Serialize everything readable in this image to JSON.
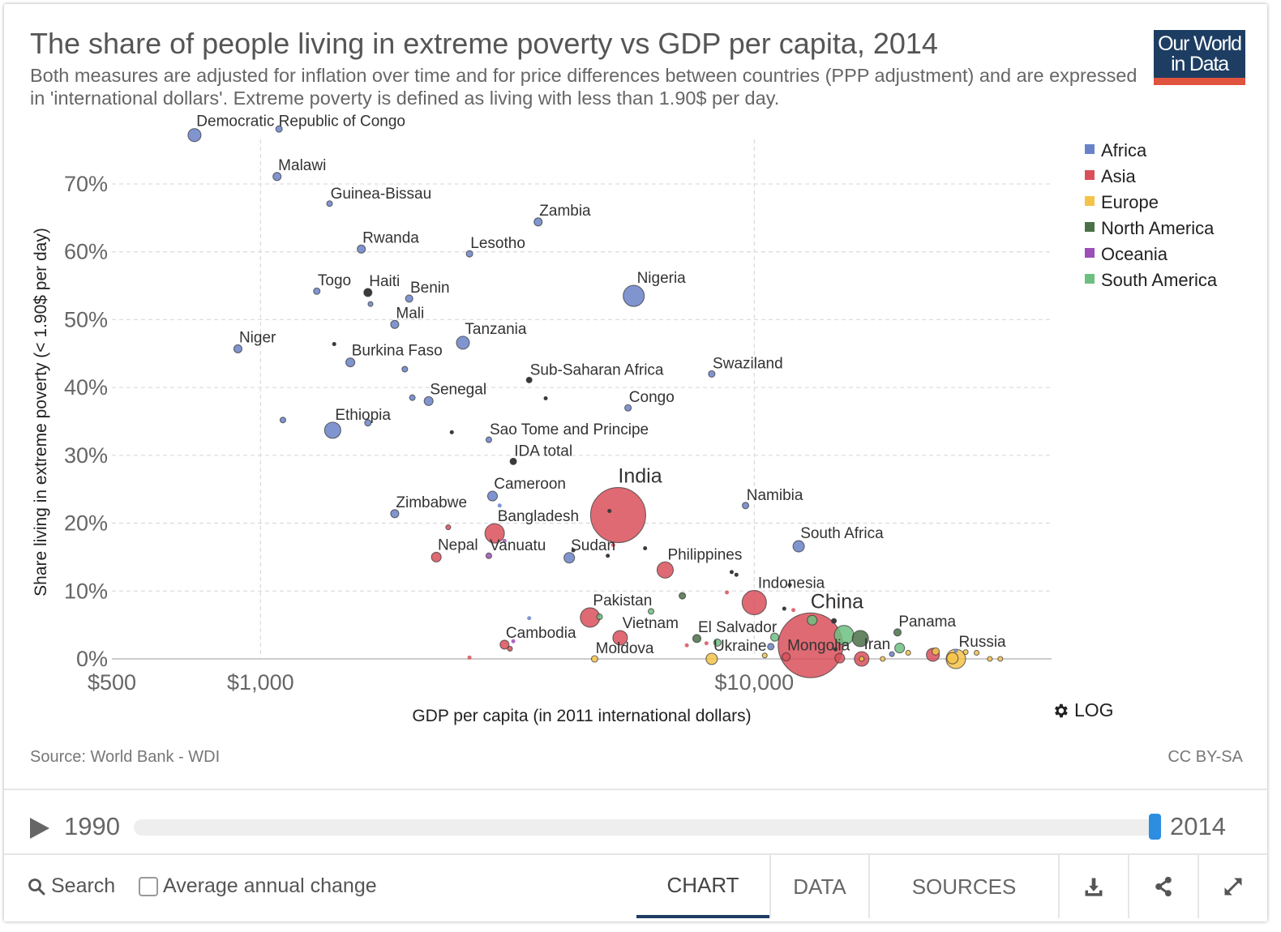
{
  "title": "The share of people living in extreme poverty vs GDP per capita, 2014",
  "subtitle": "Both measures are adjusted for inflation over time and for price differences between countries (PPP adjustment) and are expressed in 'international dollars'. Extreme poverty is defined as living with less than 1.90$ per day.",
  "logo": {
    "line1": "Our World",
    "line2": "in Data"
  },
  "colors": {
    "Africa": "#6a82c8",
    "Asia": "#d9505a",
    "Europe": "#f5c34a",
    "North America": "#4a7048",
    "Oceania": "#9b4fb8",
    "South America": "#6dbf80",
    "Other": "#3a3a3a"
  },
  "chart_data": {
    "type": "scatter",
    "xlabel": "GDP per capita (in 2011 international dollars)",
    "ylabel": "Share living in extreme poverty (< 1.90$ per day)",
    "xscale": "log",
    "xlim": [
      500,
      40000
    ],
    "ylim": [
      0,
      78
    ],
    "xticks": [
      {
        "value": 500,
        "label": "$500"
      },
      {
        "value": 1000,
        "label": "$1,000"
      },
      {
        "value": 10000,
        "label": "$10,000"
      }
    ],
    "yticks": [
      {
        "value": 0,
        "label": "0%"
      },
      {
        "value": 10,
        "label": "10%"
      },
      {
        "value": 20,
        "label": "20%"
      },
      {
        "value": 30,
        "label": "30%"
      },
      {
        "value": 40,
        "label": "40%"
      },
      {
        "value": 50,
        "label": "50%"
      },
      {
        "value": 60,
        "label": "60%"
      },
      {
        "value": 70,
        "label": "70%"
      }
    ],
    "legend": [
      "Africa",
      "Asia",
      "Europe",
      "North America",
      "Oceania",
      "South America"
    ],
    "legend_position": "right",
    "points": [
      {
        "name": "Democratic Republic of Congo",
        "label": "Democratic Republic of Congo",
        "region": "Africa",
        "gdp": 735,
        "pov": 77.2,
        "size": 8
      },
      {
        "name": "Unlabeled",
        "label": "",
        "region": "Africa",
        "gdp": 1090,
        "pov": 78.1,
        "size": 4
      },
      {
        "name": "Malawi",
        "label": "Malawi",
        "region": "Africa",
        "gdp": 1080,
        "pov": 71.1,
        "size": 5
      },
      {
        "name": "Guinea-Bissau",
        "label": "Guinea-Bissau",
        "region": "Africa",
        "gdp": 1380,
        "pov": 67.1,
        "size": 3.5
      },
      {
        "name": "Zambia",
        "label": "Zambia",
        "region": "Africa",
        "gdp": 3650,
        "pov": 64.4,
        "size": 5
      },
      {
        "name": "Rwanda",
        "label": "Rwanda",
        "region": "Africa",
        "gdp": 1600,
        "pov": 60.4,
        "size": 5
      },
      {
        "name": "Lesotho",
        "label": "Lesotho",
        "region": "Africa",
        "gdp": 2650,
        "pov": 59.7,
        "size": 4
      },
      {
        "name": "Togo",
        "label": "Togo",
        "region": "Africa",
        "gdp": 1300,
        "pov": 54.2,
        "size": 4
      },
      {
        "name": "Haiti",
        "label": "Haiti",
        "region": "Other",
        "gdp": 1650,
        "pov": 54.0,
        "size": 5
      },
      {
        "name": "Benin",
        "label": "Benin",
        "region": "Africa",
        "gdp": 2000,
        "pov": 53.1,
        "size": 4.5
      },
      {
        "name": "Unlabeled",
        "label": "",
        "region": "Africa",
        "gdp": 1670,
        "pov": 52.3,
        "size": 3
      },
      {
        "name": "Nigeria",
        "label": "Nigeria",
        "region": "Africa",
        "gdp": 5700,
        "pov": 53.5,
        "size": 13
      },
      {
        "name": "Mali",
        "label": "Mali",
        "region": "Africa",
        "gdp": 1870,
        "pov": 49.3,
        "size": 5
      },
      {
        "name": "Niger",
        "label": "Niger",
        "region": "Africa",
        "gdp": 900,
        "pov": 45.7,
        "size": 5
      },
      {
        "name": "Tanzania",
        "label": "Tanzania",
        "region": "Africa",
        "gdp": 2570,
        "pov": 46.6,
        "size": 8
      },
      {
        "name": "Unlabeled",
        "label": "",
        "region": "Other",
        "gdp": 1410,
        "pov": 46.4,
        "size": 2.5
      },
      {
        "name": "Burkina Faso",
        "label": "Burkina Faso",
        "region": "Africa",
        "gdp": 1520,
        "pov": 43.7,
        "size": 5.5
      },
      {
        "name": "Unlabeled",
        "label": "",
        "region": "Africa",
        "gdp": 1960,
        "pov": 42.7,
        "size": 3.5
      },
      {
        "name": "Sub-Saharan Africa",
        "label": "Sub-Saharan Africa",
        "region": "Other",
        "gdp": 3500,
        "pov": 41.1,
        "size": 3.5
      },
      {
        "name": "Swaziland",
        "label": "Swaziland",
        "region": "Africa",
        "gdp": 8200,
        "pov": 42.0,
        "size": 4
      },
      {
        "name": "Senegal",
        "label": "Senegal",
        "region": "Africa",
        "gdp": 2190,
        "pov": 38.0,
        "size": 5.5
      },
      {
        "name": "Unlabeled",
        "label": "",
        "region": "Africa",
        "gdp": 2030,
        "pov": 38.5,
        "size": 3.5
      },
      {
        "name": "Unlabeled",
        "label": "",
        "region": "Other",
        "gdp": 3780,
        "pov": 38.4,
        "size": 2.5
      },
      {
        "name": "Congo",
        "label": "Congo",
        "region": "Africa",
        "gdp": 5550,
        "pov": 37.0,
        "size": 4
      },
      {
        "name": "Ethiopia",
        "label": "Ethiopia",
        "region": "Africa",
        "gdp": 1400,
        "pov": 33.7,
        "size": 10
      },
      {
        "name": "Unlabeled",
        "label": "",
        "region": "Africa",
        "gdp": 1650,
        "pov": 34.8,
        "size": 4
      },
      {
        "name": "Unlabeled",
        "label": "",
        "region": "Africa",
        "gdp": 1110,
        "pov": 35.2,
        "size": 3.5
      },
      {
        "name": "Unlabeled",
        "label": "",
        "region": "Other",
        "gdp": 2440,
        "pov": 33.4,
        "size": 2.5
      },
      {
        "name": "Sao Tome and Principe",
        "label": "Sao Tome and Principe",
        "region": "Africa",
        "gdp": 2900,
        "pov": 32.3,
        "size": 3.5
      },
      {
        "name": "IDA total",
        "label": "IDA total",
        "region": "Other",
        "gdp": 3250,
        "pov": 29.1,
        "size": 4
      },
      {
        "name": "Cameroon",
        "label": "Cameroon",
        "region": "Africa",
        "gdp": 2950,
        "pov": 24.0,
        "size": 6
      },
      {
        "name": "Unlabeled",
        "label": "",
        "region": "Africa",
        "gdp": 3050,
        "pov": 22.6,
        "size": 2.5
      },
      {
        "name": "Zimbabwe",
        "label": "Zimbabwe",
        "region": "Africa",
        "gdp": 1870,
        "pov": 21.4,
        "size": 5
      },
      {
        "name": "India",
        "label": "India",
        "region": "Asia",
        "gdp": 5300,
        "pov": 21.2,
        "size": 34
      },
      {
        "name": "Unlabeled",
        "label": "",
        "region": "Other",
        "gdp": 5090,
        "pov": 21.8,
        "size": 2.5
      },
      {
        "name": "Bangladesh",
        "label": "Bangladesh",
        "region": "Asia",
        "gdp": 2980,
        "pov": 18.5,
        "size": 12
      },
      {
        "name": "Unlabeled",
        "label": "",
        "region": "Asia",
        "gdp": 2400,
        "pov": 19.4,
        "size": 3
      },
      {
        "name": "Namibia",
        "label": "Namibia",
        "region": "Africa",
        "gdp": 9600,
        "pov": 22.6,
        "size": 4
      },
      {
        "name": "Nepal",
        "label": "Nepal",
        "region": "Asia",
        "gdp": 2270,
        "pov": 15.0,
        "size": 6
      },
      {
        "name": "Vanuatu",
        "label": "Vanuatu",
        "region": "Oceania",
        "gdp": 2900,
        "pov": 15.2,
        "size": 3.5
      },
      {
        "name": "Unlabeled",
        "label": "",
        "region": "Oceania",
        "gdp": 3120,
        "pov": 17.4,
        "size": 2.5
      },
      {
        "name": "Sudan",
        "label": "Sudan",
        "region": "Africa",
        "gdp": 4220,
        "pov": 14.9,
        "size": 6.5
      },
      {
        "name": "Unlabeled",
        "label": "",
        "region": "Other",
        "gdp": 4300,
        "pov": 16.0,
        "size": 2.5
      },
      {
        "name": "Unlabeled",
        "label": "",
        "region": "Other",
        "gdp": 5050,
        "pov": 15.2,
        "size": 2.5
      },
      {
        "name": "Unlabeled",
        "label": "",
        "region": "Other",
        "gdp": 6010,
        "pov": 16.3,
        "size": 2.5
      },
      {
        "name": "Unlabeled",
        "label": "",
        "region": "Asia",
        "gdp": 5180,
        "pov": 16.8,
        "size": 2.5
      },
      {
        "name": "South Africa",
        "label": "South Africa",
        "region": "Africa",
        "gdp": 12300,
        "pov": 16.6,
        "size": 7
      },
      {
        "name": "Philippines",
        "label": "Philippines",
        "region": "Asia",
        "gdp": 6600,
        "pov": 13.1,
        "size": 10
      },
      {
        "name": "Unlabeled",
        "label": "",
        "region": "Other",
        "gdp": 9000,
        "pov": 12.8,
        "size": 2.5
      },
      {
        "name": "Unlabeled",
        "label": "",
        "region": "Other",
        "gdp": 9200,
        "pov": 12.4,
        "size": 2.5
      },
      {
        "name": "Indonesia",
        "label": "Indonesia",
        "region": "Asia",
        "gdp": 10000,
        "pov": 8.3,
        "size": 15
      },
      {
        "name": "Unlabeled",
        "label": "",
        "region": "Other",
        "gdp": 11800,
        "pov": 10.9,
        "size": 2.5
      },
      {
        "name": "Unlabeled",
        "label": "",
        "region": "Asia",
        "gdp": 8800,
        "pov": 9.8,
        "size": 2.5
      },
      {
        "name": "Unlabeled",
        "label": "",
        "region": "North America",
        "gdp": 7150,
        "pov": 9.3,
        "size": 4
      },
      {
        "name": "Unlabeled",
        "label": "",
        "region": "Other",
        "gdp": 11500,
        "pov": 7.4,
        "size": 2.5
      },
      {
        "name": "Unlabeled",
        "label": "",
        "region": "Asia",
        "gdp": 12000,
        "pov": 7.2,
        "size": 2.5
      },
      {
        "name": "Pakistan",
        "label": "Pakistan",
        "region": "Asia",
        "gdp": 4650,
        "pov": 6.1,
        "size": 12
      },
      {
        "name": "Unlabeled",
        "label": "",
        "region": "South America",
        "gdp": 4860,
        "pov": 6.2,
        "size": 3.5
      },
      {
        "name": "Unlabeled",
        "label": "",
        "region": "South America",
        "gdp": 6180,
        "pov": 7.0,
        "size": 3.5
      },
      {
        "name": "Unlabeled",
        "label": "",
        "region": "Africa",
        "gdp": 3500,
        "pov": 6.0,
        "size": 2.5
      },
      {
        "name": "China",
        "label": "China",
        "region": "Asia",
        "gdp": 13000,
        "pov": 2.0,
        "size": 40
      },
      {
        "name": "Unlabeled",
        "label": "",
        "region": "South America",
        "gdp": 13100,
        "pov": 5.7,
        "size": 6
      },
      {
        "name": "Unlabeled",
        "label": "",
        "region": "Other",
        "gdp": 14500,
        "pov": 5.6,
        "size": 3
      },
      {
        "name": "Unlabeled",
        "label": "",
        "region": "South America",
        "gdp": 15200,
        "pov": 3.5,
        "size": 12
      },
      {
        "name": "Unlabeled",
        "label": "",
        "region": "North America",
        "gdp": 16400,
        "pov": 3.0,
        "size": 10
      },
      {
        "name": "Vietnam",
        "label": "Vietnam",
        "region": "Asia",
        "gdp": 5350,
        "pov": 3.1,
        "size": 9
      },
      {
        "name": "Cambodia",
        "label": "Cambodia",
        "region": "Asia",
        "gdp": 3120,
        "pov": 2.1,
        "size": 5.5
      },
      {
        "name": "Unlabeled",
        "label": "",
        "region": "Oceania",
        "gdp": 3250,
        "pov": 2.6,
        "size": 2.5
      },
      {
        "name": "Unlabeled",
        "label": "",
        "region": "Asia",
        "gdp": 3200,
        "pov": 1.5,
        "size": 3
      },
      {
        "name": "Unlabeled",
        "label": "",
        "region": "Asia",
        "gdp": 2650,
        "pov": 0.2,
        "size": 2.5
      },
      {
        "name": "El Salvador",
        "label": "El Salvador",
        "region": "North America",
        "gdp": 7650,
        "pov": 3.0,
        "size": 5
      },
      {
        "name": "Unlabeled",
        "label": "",
        "region": "Asia",
        "gdp": 7300,
        "pov": 2.0,
        "size": 2.5
      },
      {
        "name": "Unlabeled",
        "label": "",
        "region": "South America",
        "gdp": 8420,
        "pov": 2.4,
        "size": 4.5
      },
      {
        "name": "Unlabeled",
        "label": "",
        "region": "Asia",
        "gdp": 8000,
        "pov": 2.3,
        "size": 2.5
      },
      {
        "name": "Ukraine",
        "label": "Ukraine",
        "region": "Europe",
        "gdp": 8200,
        "pov": 0.0,
        "size": 7
      },
      {
        "name": "Unlabeled",
        "label": "",
        "region": "South America",
        "gdp": 11000,
        "pov": 3.2,
        "size": 5
      },
      {
        "name": "Moldova",
        "label": "Moldova",
        "region": "Europe",
        "gdp": 4750,
        "pov": 0.0,
        "size": 4
      },
      {
        "name": "Mongolia",
        "label": "Mongolia",
        "region": "Asia",
        "gdp": 11600,
        "pov": 0.3,
        "size": 5
      },
      {
        "name": "Unlabeled",
        "label": "",
        "region": "Africa",
        "gdp": 10800,
        "pov": 1.8,
        "size": 4
      },
      {
        "name": "Unlabeled",
        "label": "",
        "region": "Europe",
        "gdp": 10500,
        "pov": 0.5,
        "size": 3
      },
      {
        "name": "Unlabeled",
        "label": "",
        "region": "Asia",
        "gdp": 14900,
        "pov": 0.1,
        "size": 6
      },
      {
        "name": "Unlabeled",
        "label": "",
        "region": "Other",
        "gdp": 14600,
        "pov": 1.4,
        "size": 2.5
      },
      {
        "name": "Iran",
        "label": "Iran",
        "region": "Asia",
        "gdp": 16500,
        "pov": 0.0,
        "size": 9
      },
      {
        "name": "Unlabeled",
        "label": "",
        "region": "Africa",
        "gdp": 19000,
        "pov": 0.7,
        "size": 3
      },
      {
        "name": "Unlabeled",
        "label": "",
        "region": "South America",
        "gdp": 19700,
        "pov": 1.6,
        "size": 6
      },
      {
        "name": "Panama",
        "label": "Panama",
        "region": "North America",
        "gdp": 19500,
        "pov": 3.9,
        "size": 4.5
      },
      {
        "name": "Unlabeled",
        "label": "",
        "region": "Europe",
        "gdp": 18200,
        "pov": 0.0,
        "size": 3
      },
      {
        "name": "Unlabeled",
        "label": "",
        "region": "Europe",
        "gdp": 20500,
        "pov": 0.9,
        "size": 3
      },
      {
        "name": "Unlabeled",
        "label": "",
        "region": "Asia",
        "gdp": 23000,
        "pov": 0.6,
        "size": 8
      },
      {
        "name": "Unlabeled",
        "label": "",
        "region": "Europe",
        "gdp": 23300,
        "pov": 1.1,
        "size": 4.5
      },
      {
        "name": "Unlabeled",
        "label": "",
        "region": "Europe",
        "gdp": 25200,
        "pov": 0.1,
        "size": 7
      },
      {
        "name": "Russia",
        "label": "Russia",
        "region": "Europe",
        "gdp": 25600,
        "pov": 0.0,
        "size": 12
      },
      {
        "name": "Unlabeled",
        "label": "",
        "region": "Africa",
        "gdp": 25600,
        "pov": 1.2,
        "size": 2.5
      },
      {
        "name": "Unlabeled",
        "label": "",
        "region": "Europe",
        "gdp": 26800,
        "pov": 1.0,
        "size": 3
      },
      {
        "name": "Unlabeled",
        "label": "",
        "region": "Europe",
        "gdp": 28200,
        "pov": 0.9,
        "size": 3
      },
      {
        "name": "Unlabeled",
        "label": "",
        "region": "Europe",
        "gdp": 30000,
        "pov": 0.0,
        "size": 3
      },
      {
        "name": "Unlabeled",
        "label": "",
        "region": "Europe",
        "gdp": 31500,
        "pov": 0.0,
        "size": 3
      },
      {
        "name": "Unlabeled",
        "label": "",
        "region": "Europe",
        "gdp": 16500,
        "pov": 0.0,
        "size": 3
      }
    ]
  },
  "footer": {
    "source": "Source: World Bank - WDI",
    "license": "CC BY-SA"
  },
  "log_label": "LOG",
  "timeline": {
    "start_year": "1990",
    "end_year": "2014",
    "progress": 1.0
  },
  "controls": {
    "search_label": "Search",
    "avg_label": "Average annual change",
    "tabs": [
      {
        "label": "CHART",
        "active": true
      },
      {
        "label": "DATA",
        "active": false
      },
      {
        "label": "SOURCES",
        "active": false
      }
    ],
    "icons": [
      "download-icon",
      "share-icon",
      "expand-icon"
    ]
  }
}
